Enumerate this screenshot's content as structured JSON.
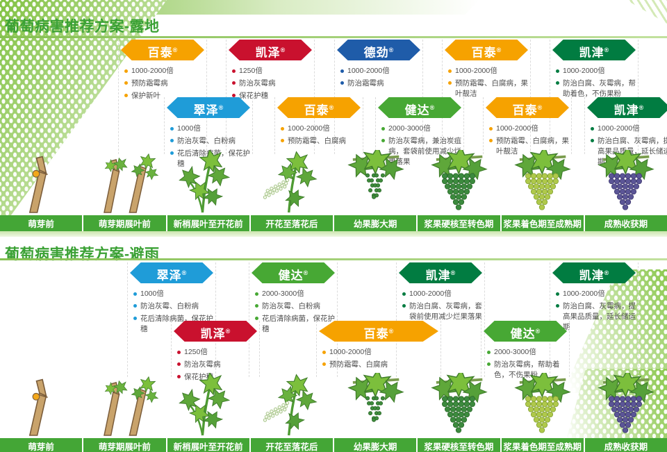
{
  "reg_mark": "®",
  "colors": {
    "title_green": "#3BA135",
    "timeline_green": "#44A636",
    "divider_green": "#9CCB72",
    "strip_green": "#D8ECC2",
    "bullet_text": "#4F4F4F"
  },
  "products": {
    "百泰": {
      "color": "#F6A200"
    },
    "凯泽": {
      "color": "#C9112E"
    },
    "德劲": {
      "color": "#1F5CA9"
    },
    "凯津": {
      "color": "#017C41"
    },
    "翠泽": {
      "color": "#1F9CD8"
    },
    "健达": {
      "color": "#47A834"
    }
  },
  "growth_stages": [
    {
      "label": "萌芽前",
      "icon": "bare-cane-icon"
    },
    {
      "label": "萌芽期展叶前",
      "icon": "budbreak-icon"
    },
    {
      "label": "新梢展叶至开花前",
      "icon": "shoot-leaves-icon"
    },
    {
      "label": "开花至落花后",
      "icon": "bloom-icon"
    },
    {
      "label": "幼果膨大期",
      "icon": "young-berries-icon"
    },
    {
      "label": "浆果硬核至转色期",
      "icon": "hard-green-cluster-icon"
    },
    {
      "label": "浆果着色期至成熟期",
      "icon": "veraison-cluster-icon"
    },
    {
      "label": "成熟收获期",
      "icon": "ripe-cluster-icon"
    }
  ],
  "sections": [
    {
      "title": "葡萄病害推荐方案-露地",
      "rows": [
        [
          {
            "product": "百泰",
            "bullets": [
              "1000-2000倍",
              "预防霜霉病",
              "保护新叶"
            ]
          },
          {
            "product": "凯泽",
            "bullets": [
              "1250倍",
              "防治灰霉病",
              "保花护穗"
            ]
          },
          {
            "product": "德劲",
            "bullets": [
              "1000-2000倍",
              "防治霜霉病"
            ]
          },
          {
            "product": "百泰",
            "bullets": [
              "1000-2000倍",
              "预防霜霉、白腐病，果叶靓洁"
            ]
          },
          {
            "product": "凯津",
            "bullets": [
              "1000-2000倍",
              "防治白腐、灰霉病，帮助着色，不伤果粉"
            ]
          }
        ],
        [
          {
            "product": "翠泽",
            "bullets": [
              "1000倍",
              "防治灰霉、白粉病",
              "花后清除病菌，保花护穗"
            ]
          },
          {
            "product": "百泰",
            "bullets": [
              "1000-2000倍",
              "预防霜霉、白腐病"
            ]
          },
          {
            "product": "健达",
            "bullets": [
              "2000-3000倍",
              "防治灰霉病，兼治炭疽病，套袋前使用减少烂果落果"
            ]
          },
          {
            "product": "百泰",
            "bullets": [
              "1000-2000倍",
              "预防霜霉、白腐病，果叶靓洁"
            ]
          },
          {
            "product": "凯津",
            "bullets": [
              "1000-2000倍",
              "防治白腐、灰霉病，提高果品质量，延长储运期"
            ]
          }
        ]
      ]
    },
    {
      "title": "葡萄病害推荐方案-避雨",
      "rows": [
        [
          {
            "product": "翠泽",
            "bullets": [
              "1000倍",
              "防治灰霉、白粉病",
              "花后清除病菌，保花护穗"
            ]
          },
          {
            "product": "健达",
            "bullets": [
              "2000-3000倍",
              "防治灰霉、白粉病",
              "花后清除病菌，保花护穗"
            ]
          },
          {
            "product": "凯津",
            "bullets": [
              "1000-2000倍",
              "防治白腐、灰霉病，套袋前使用减少烂果落果"
            ]
          },
          {
            "product": "凯津",
            "bullets": [
              "1000-2000倍",
              "防治白腐、灰霉病，提高果品质量，延长储运期"
            ]
          }
        ],
        [
          {
            "product": "凯泽",
            "bullets": [
              "1250倍",
              "防治灰霉病",
              "保花护穗"
            ]
          },
          {
            "product": "百泰",
            "bullets": [
              "1000-2000倍",
              "预防霜霉、白腐病"
            ]
          },
          {
            "product": "健达",
            "bullets": [
              "2000-3000倍",
              "防治灰霉病，帮助着色，不伤果粉"
            ]
          }
        ]
      ]
    }
  ]
}
